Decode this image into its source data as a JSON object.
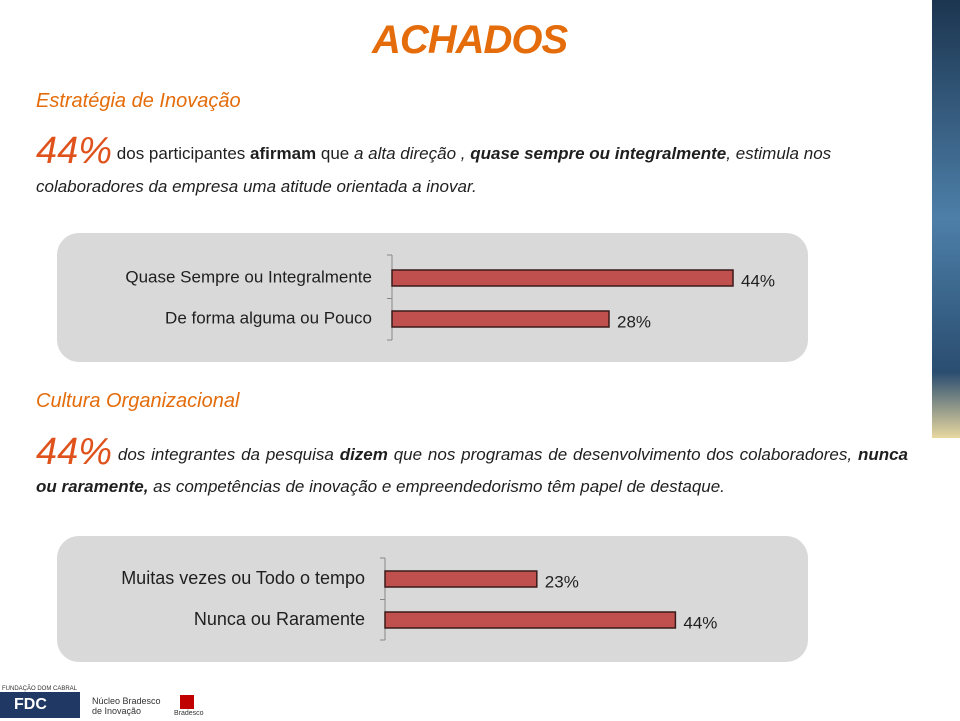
{
  "header": {
    "title": "ACHADOS"
  },
  "sections": [
    {
      "heading": "Estratégia de Inovação",
      "runs": [
        "44%",
        " dos participantes ",
        "afirmam",
        " que ",
        "a alta direção , ",
        "quase sempre ou integralmente",
        ", estimula nos colaboradores da empresa uma atitude orientada a inovar."
      ]
    },
    {
      "heading": "Cultura Organizacional",
      "runs": [
        "44%",
        " dos integrantes da pesquisa ",
        "dizem",
        " que nos programas de desenvolvimento dos colaboradores, ",
        "nunca ou raramente,",
        " as competências de inovação e empreendedorismo têm papel de destaque."
      ]
    }
  ],
  "chart_data": [
    {
      "type": "bar",
      "orientation": "horizontal",
      "categories": [
        "Quase Sempre ou Integralmente",
        "De forma alguma ou Pouco"
      ],
      "values": [
        44,
        28
      ],
      "value_labels": [
        "44%",
        "28%"
      ],
      "color": "#c0504d"
    },
    {
      "type": "bar",
      "orientation": "horizontal",
      "categories": [
        "Muitas vezes ou Todo o tempo",
        "Nunca ou Raramente"
      ],
      "values": [
        23,
        44
      ],
      "value_labels": [
        "23%",
        "44%"
      ],
      "color": "#c0504d"
    }
  ],
  "footer": {
    "fdc_top": "FUNDAÇÃO DOM CABRAL",
    "fdc": "FDC",
    "nucleo": "Núcleo Bradesco de Inovação",
    "bradesco": "Bradesco"
  }
}
